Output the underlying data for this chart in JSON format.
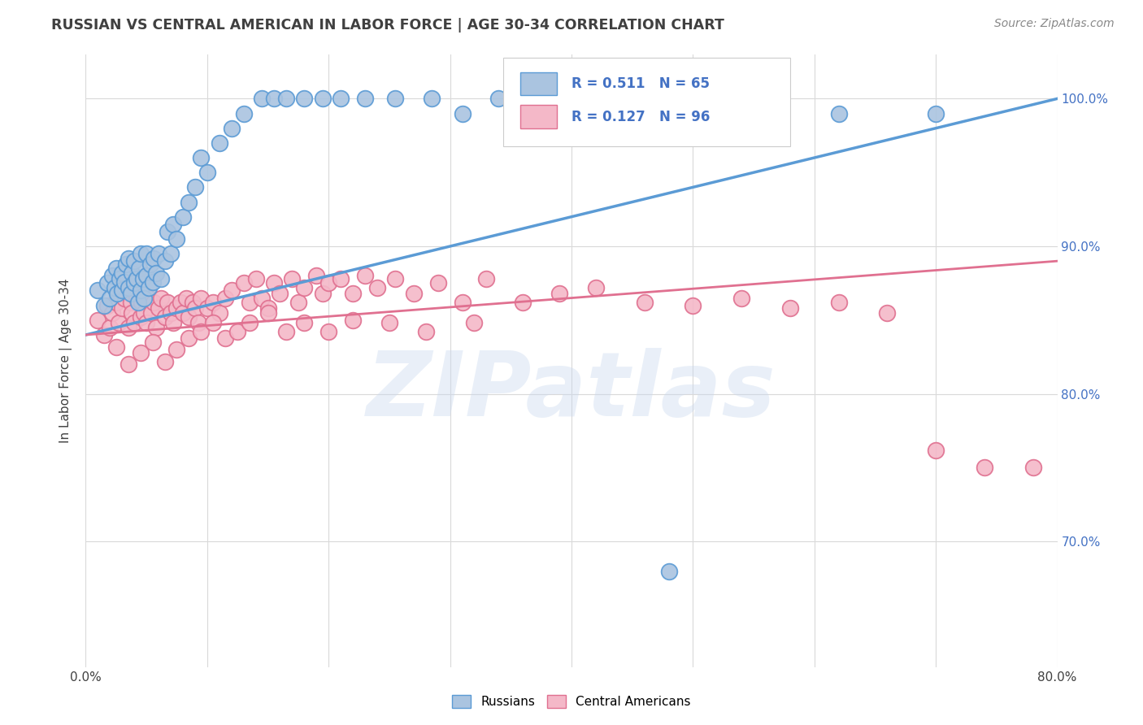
{
  "title": "RUSSIAN VS CENTRAL AMERICAN IN LABOR FORCE | AGE 30-34 CORRELATION CHART",
  "source": "Source: ZipAtlas.com",
  "ylabel": "In Labor Force | Age 30-34",
  "xlim": [
    0.0,
    0.8
  ],
  "ylim": [
    0.615,
    1.03
  ],
  "ytick_values": [
    0.7,
    0.8,
    0.9,
    1.0
  ],
  "right_axis_color": "#4472c4",
  "russian_color": "#aac4e0",
  "russian_edge_color": "#5b9bd5",
  "central_american_color": "#f4b8c8",
  "central_american_edge_color": "#e07090",
  "russian_R": 0.511,
  "russian_N": 65,
  "central_american_R": 0.127,
  "central_american_N": 96,
  "watermark": "ZIPatlas",
  "background_color": "#ffffff",
  "grid_color": "#d9d9d9",
  "title_color": "#404040",
  "legend_text_color": "#4472c4",
  "russian_scatter_x": [
    0.01,
    0.015,
    0.018,
    0.02,
    0.022,
    0.024,
    0.025,
    0.026,
    0.028,
    0.03,
    0.03,
    0.032,
    0.033,
    0.035,
    0.035,
    0.037,
    0.038,
    0.04,
    0.04,
    0.042,
    0.043,
    0.044,
    0.045,
    0.045,
    0.047,
    0.048,
    0.05,
    0.05,
    0.052,
    0.053,
    0.055,
    0.056,
    0.058,
    0.06,
    0.062,
    0.065,
    0.067,
    0.07,
    0.072,
    0.075,
    0.08,
    0.085,
    0.09,
    0.095,
    0.1,
    0.11,
    0.12,
    0.13,
    0.145,
    0.155,
    0.165,
    0.18,
    0.195,
    0.21,
    0.23,
    0.255,
    0.285,
    0.31,
    0.34,
    0.39,
    0.44,
    0.5,
    0.62,
    0.7,
    0.48
  ],
  "russian_scatter_y": [
    0.87,
    0.86,
    0.875,
    0.865,
    0.88,
    0.872,
    0.885,
    0.868,
    0.878,
    0.87,
    0.882,
    0.876,
    0.888,
    0.872,
    0.892,
    0.868,
    0.882,
    0.875,
    0.89,
    0.878,
    0.862,
    0.885,
    0.87,
    0.895,
    0.878,
    0.865,
    0.88,
    0.895,
    0.872,
    0.888,
    0.876,
    0.892,
    0.882,
    0.895,
    0.878,
    0.89,
    0.91,
    0.895,
    0.915,
    0.905,
    0.92,
    0.93,
    0.94,
    0.96,
    0.95,
    0.97,
    0.98,
    0.99,
    1.0,
    1.0,
    1.0,
    1.0,
    1.0,
    1.0,
    1.0,
    1.0,
    1.0,
    0.99,
    1.0,
    0.99,
    0.99,
    0.99,
    0.99,
    0.99,
    0.68
  ],
  "central_american_scatter_x": [
    0.01,
    0.015,
    0.018,
    0.02,
    0.022,
    0.025,
    0.027,
    0.03,
    0.032,
    0.035,
    0.037,
    0.038,
    0.04,
    0.042,
    0.045,
    0.046,
    0.048,
    0.05,
    0.052,
    0.054,
    0.056,
    0.058,
    0.06,
    0.062,
    0.065,
    0.067,
    0.07,
    0.072,
    0.075,
    0.078,
    0.08,
    0.083,
    0.085,
    0.088,
    0.09,
    0.093,
    0.095,
    0.1,
    0.105,
    0.11,
    0.115,
    0.12,
    0.13,
    0.135,
    0.14,
    0.145,
    0.15,
    0.155,
    0.16,
    0.17,
    0.175,
    0.18,
    0.19,
    0.195,
    0.2,
    0.21,
    0.22,
    0.23,
    0.24,
    0.255,
    0.27,
    0.29,
    0.31,
    0.33,
    0.36,
    0.39,
    0.42,
    0.46,
    0.5,
    0.54,
    0.58,
    0.62,
    0.66,
    0.7,
    0.74,
    0.78,
    0.025,
    0.035,
    0.045,
    0.055,
    0.065,
    0.075,
    0.085,
    0.095,
    0.105,
    0.115,
    0.125,
    0.135,
    0.15,
    0.165,
    0.18,
    0.2,
    0.22,
    0.25,
    0.28,
    0.32
  ],
  "central_american_scatter_y": [
    0.85,
    0.84,
    0.86,
    0.845,
    0.855,
    0.862,
    0.848,
    0.858,
    0.865,
    0.845,
    0.862,
    0.855,
    0.848,
    0.865,
    0.852,
    0.862,
    0.855,
    0.848,
    0.865,
    0.855,
    0.862,
    0.845,
    0.858,
    0.865,
    0.852,
    0.862,
    0.855,
    0.848,
    0.858,
    0.862,
    0.855,
    0.865,
    0.852,
    0.862,
    0.858,
    0.848,
    0.865,
    0.858,
    0.862,
    0.855,
    0.865,
    0.87,
    0.875,
    0.862,
    0.878,
    0.865,
    0.858,
    0.875,
    0.868,
    0.878,
    0.862,
    0.872,
    0.88,
    0.868,
    0.875,
    0.878,
    0.868,
    0.88,
    0.872,
    0.878,
    0.868,
    0.875,
    0.862,
    0.878,
    0.862,
    0.868,
    0.872,
    0.862,
    0.86,
    0.865,
    0.858,
    0.862,
    0.855,
    0.762,
    0.75,
    0.75,
    0.832,
    0.82,
    0.828,
    0.835,
    0.822,
    0.83,
    0.838,
    0.842,
    0.848,
    0.838,
    0.842,
    0.848,
    0.855,
    0.842,
    0.848,
    0.842,
    0.85,
    0.848,
    0.842,
    0.848
  ]
}
